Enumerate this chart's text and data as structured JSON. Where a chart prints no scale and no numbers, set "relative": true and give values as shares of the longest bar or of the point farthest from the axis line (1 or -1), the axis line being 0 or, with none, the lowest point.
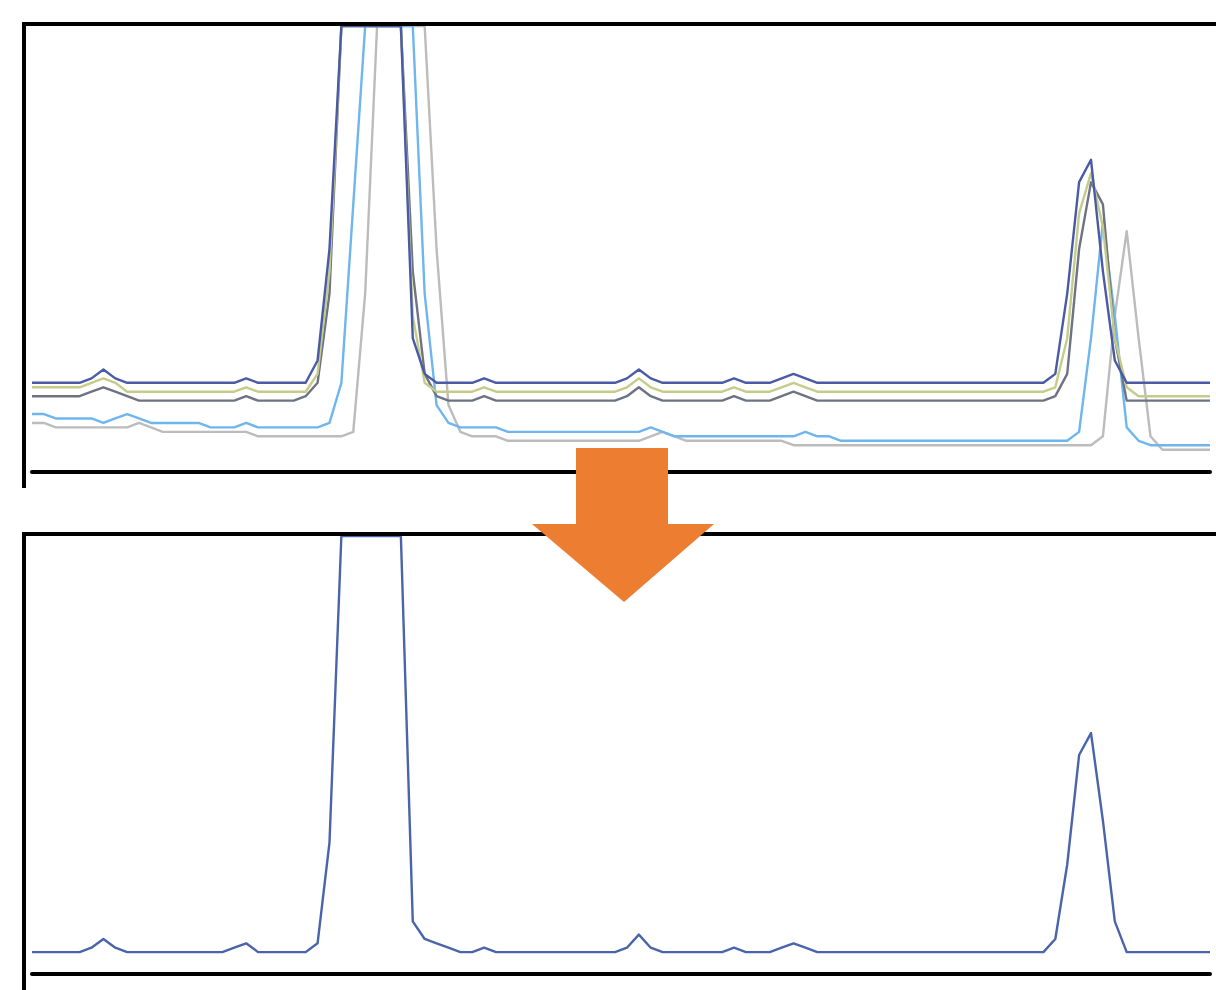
{
  "chart_data": [
    {
      "type": "line",
      "relative": true,
      "marker": "none",
      "categories": [
        null,
        null,
        null,
        null,
        null,
        null,
        null,
        null,
        null,
        null,
        null,
        null,
        null,
        null,
        null,
        null,
        null,
        null,
        null,
        null,
        null,
        null,
        null,
        null,
        null,
        null,
        null,
        null,
        null,
        null,
        null,
        null,
        null,
        null,
        null,
        null,
        null,
        null,
        null,
        null,
        null,
        null,
        null,
        null,
        null,
        null,
        null,
        null,
        null,
        null,
        null,
        null,
        null,
        null,
        null,
        null,
        null,
        null,
        null,
        null,
        null,
        null,
        null,
        null,
        null,
        null,
        null,
        null,
        null,
        null,
        null,
        null,
        null,
        null,
        null,
        null,
        null,
        null,
        null,
        null,
        null,
        null,
        null,
        null,
        null,
        null,
        null,
        null,
        null,
        null,
        null,
        null,
        null,
        null,
        null,
        null,
        null,
        null,
        null,
        null
      ],
      "series": [
        {
          "color": "#bcbcbc",
          "values": [
            0.11,
            0.11,
            0.1,
            0.1,
            0.1,
            0.1,
            0.1,
            0.1,
            0.1,
            0.11,
            0.1,
            0.09,
            0.09,
            0.09,
            0.09,
            0.09,
            0.09,
            0.09,
            0.09,
            0.08,
            0.08,
            0.08,
            0.08,
            0.08,
            0.08,
            0.08,
            0.08,
            0.09,
            0.4,
            1,
            1,
            1,
            1,
            1,
            0.5,
            0.15,
            0.09,
            0.08,
            0.08,
            0.08,
            0.07,
            0.07,
            0.07,
            0.07,
            0.07,
            0.07,
            0.07,
            0.07,
            0.07,
            0.07,
            0.07,
            0.07,
            0.08,
            0.09,
            0.08,
            0.07,
            0.07,
            0.07,
            0.07,
            0.07,
            0.07,
            0.07,
            0.07,
            0.07,
            0.06,
            0.06,
            0.06,
            0.06,
            0.06,
            0.06,
            0.06,
            0.06,
            0.06,
            0.06,
            0.06,
            0.06,
            0.06,
            0.06,
            0.06,
            0.06,
            0.06,
            0.06,
            0.06,
            0.06,
            0.06,
            0.06,
            0.06,
            0.06,
            0.06,
            0.06,
            0.08,
            0.35,
            0.54,
            0.3,
            0.08,
            0.05,
            0.05,
            0.05,
            0.05,
            0.05
          ]
        },
        {
          "color": "#6fb6ee",
          "values": [
            0.13,
            0.13,
            0.12,
            0.12,
            0.12,
            0.12,
            0.11,
            0.12,
            0.13,
            0.12,
            0.11,
            0.11,
            0.11,
            0.11,
            0.11,
            0.1,
            0.1,
            0.1,
            0.11,
            0.1,
            0.1,
            0.1,
            0.1,
            0.1,
            0.1,
            0.11,
            0.2,
            0.6,
            1,
            1,
            1,
            1,
            1,
            0.4,
            0.15,
            0.11,
            0.1,
            0.1,
            0.1,
            0.1,
            0.09,
            0.09,
            0.09,
            0.09,
            0.09,
            0.09,
            0.09,
            0.09,
            0.09,
            0.09,
            0.09,
            0.09,
            0.1,
            0.09,
            0.08,
            0.08,
            0.08,
            0.08,
            0.08,
            0.08,
            0.08,
            0.08,
            0.08,
            0.08,
            0.08,
            0.09,
            0.08,
            0.08,
            0.07,
            0.07,
            0.07,
            0.07,
            0.07,
            0.07,
            0.07,
            0.07,
            0.07,
            0.07,
            0.07,
            0.07,
            0.07,
            0.07,
            0.07,
            0.07,
            0.07,
            0.07,
            0.07,
            0.07,
            0.09,
            0.3,
            0.56,
            0.35,
            0.1,
            0.07,
            0.06,
            0.06,
            0.06,
            0.06,
            0.06,
            0.06
          ]
        },
        {
          "color": "#6e7384",
          "values": [
            0.17,
            0.17,
            0.17,
            0.17,
            0.17,
            0.18,
            0.19,
            0.18,
            0.17,
            0.16,
            0.16,
            0.16,
            0.16,
            0.16,
            0.16,
            0.16,
            0.16,
            0.16,
            0.17,
            0.16,
            0.16,
            0.16,
            0.16,
            0.17,
            0.2,
            0.4,
            1,
            1,
            1,
            1,
            1,
            1,
            0.45,
            0.22,
            0.17,
            0.16,
            0.16,
            0.16,
            0.17,
            0.16,
            0.16,
            0.16,
            0.16,
            0.16,
            0.16,
            0.16,
            0.16,
            0.16,
            0.16,
            0.16,
            0.17,
            0.19,
            0.17,
            0.16,
            0.16,
            0.16,
            0.16,
            0.16,
            0.16,
            0.17,
            0.16,
            0.16,
            0.16,
            0.17,
            0.18,
            0.17,
            0.16,
            0.16,
            0.16,
            0.16,
            0.16,
            0.16,
            0.16,
            0.16,
            0.16,
            0.16,
            0.16,
            0.16,
            0.16,
            0.16,
            0.16,
            0.16,
            0.16,
            0.16,
            0.16,
            0.16,
            0.17,
            0.22,
            0.5,
            0.65,
            0.6,
            0.3,
            0.16,
            0.16,
            0.16,
            0.16,
            0.16,
            0.16,
            0.16,
            0.16
          ]
        },
        {
          "color": "#c5cc8a",
          "values": [
            0.19,
            0.19,
            0.19,
            0.19,
            0.19,
            0.2,
            0.21,
            0.2,
            0.18,
            0.18,
            0.18,
            0.18,
            0.18,
            0.18,
            0.18,
            0.18,
            0.18,
            0.18,
            0.19,
            0.18,
            0.18,
            0.18,
            0.18,
            0.18,
            0.22,
            0.45,
            1,
            1,
            1,
            1,
            1,
            1,
            0.35,
            0.2,
            0.18,
            0.18,
            0.18,
            0.18,
            0.19,
            0.18,
            0.18,
            0.18,
            0.18,
            0.18,
            0.18,
            0.18,
            0.18,
            0.18,
            0.18,
            0.18,
            0.19,
            0.21,
            0.19,
            0.18,
            0.18,
            0.18,
            0.18,
            0.18,
            0.18,
            0.19,
            0.18,
            0.18,
            0.18,
            0.19,
            0.2,
            0.19,
            0.18,
            0.18,
            0.18,
            0.18,
            0.18,
            0.18,
            0.18,
            0.18,
            0.18,
            0.18,
            0.18,
            0.18,
            0.18,
            0.18,
            0.18,
            0.18,
            0.18,
            0.18,
            0.18,
            0.18,
            0.19,
            0.3,
            0.58,
            0.67,
            0.55,
            0.3,
            0.19,
            0.17,
            0.17,
            0.17,
            0.17,
            0.17,
            0.17,
            0.17
          ]
        },
        {
          "color": "#4a5ba6",
          "values": [
            0.2,
            0.2,
            0.2,
            0.2,
            0.2,
            0.21,
            0.23,
            0.21,
            0.2,
            0.2,
            0.2,
            0.2,
            0.2,
            0.2,
            0.2,
            0.2,
            0.2,
            0.2,
            0.21,
            0.2,
            0.2,
            0.2,
            0.2,
            0.2,
            0.25,
            0.5,
            1,
            1,
            1,
            1,
            1,
            1,
            0.3,
            0.22,
            0.2,
            0.2,
            0.2,
            0.2,
            0.21,
            0.2,
            0.2,
            0.2,
            0.2,
            0.2,
            0.2,
            0.2,
            0.2,
            0.2,
            0.2,
            0.2,
            0.21,
            0.23,
            0.21,
            0.2,
            0.2,
            0.2,
            0.2,
            0.2,
            0.2,
            0.21,
            0.2,
            0.2,
            0.2,
            0.21,
            0.22,
            0.21,
            0.2,
            0.2,
            0.2,
            0.2,
            0.2,
            0.2,
            0.2,
            0.2,
            0.2,
            0.2,
            0.2,
            0.2,
            0.2,
            0.2,
            0.2,
            0.2,
            0.2,
            0.2,
            0.2,
            0.2,
            0.22,
            0.4,
            0.65,
            0.7,
            0.45,
            0.25,
            0.2,
            0.2,
            0.2,
            0.2,
            0.2,
            0.2,
            0.2,
            0.2
          ]
        }
      ]
    },
    {
      "type": "line",
      "relative": true,
      "marker": "none",
      "categories": [
        null,
        null,
        null,
        null,
        null,
        null,
        null,
        null,
        null,
        null,
        null,
        null,
        null,
        null,
        null,
        null,
        null,
        null,
        null,
        null,
        null,
        null,
        null,
        null,
        null,
        null,
        null,
        null,
        null,
        null,
        null,
        null,
        null,
        null,
        null,
        null,
        null,
        null,
        null,
        null,
        null,
        null,
        null,
        null,
        null,
        null,
        null,
        null,
        null,
        null,
        null,
        null,
        null,
        null,
        null,
        null,
        null,
        null,
        null,
        null,
        null,
        null,
        null,
        null,
        null,
        null,
        null,
        null,
        null,
        null,
        null,
        null,
        null,
        null,
        null,
        null,
        null,
        null,
        null,
        null,
        null,
        null,
        null,
        null,
        null,
        null,
        null,
        null,
        null,
        null,
        null,
        null,
        null,
        null,
        null,
        null,
        null,
        null,
        null,
        null
      ],
      "series": [
        {
          "color": "#4a64ac",
          "values": [
            0.05,
            0.05,
            0.05,
            0.05,
            0.05,
            0.06,
            0.08,
            0.06,
            0.05,
            0.05,
            0.05,
            0.05,
            0.05,
            0.05,
            0.05,
            0.05,
            0.05,
            0.06,
            0.07,
            0.05,
            0.05,
            0.05,
            0.05,
            0.05,
            0.07,
            0.3,
            1,
            1,
            1,
            1,
            1,
            1,
            0.12,
            0.08,
            0.07,
            0.06,
            0.05,
            0.05,
            0.06,
            0.05,
            0.05,
            0.05,
            0.05,
            0.05,
            0.05,
            0.05,
            0.05,
            0.05,
            0.05,
            0.05,
            0.06,
            0.09,
            0.06,
            0.05,
            0.05,
            0.05,
            0.05,
            0.05,
            0.05,
            0.06,
            0.05,
            0.05,
            0.05,
            0.06,
            0.07,
            0.06,
            0.05,
            0.05,
            0.05,
            0.05,
            0.05,
            0.05,
            0.05,
            0.05,
            0.05,
            0.05,
            0.05,
            0.05,
            0.05,
            0.05,
            0.05,
            0.05,
            0.05,
            0.05,
            0.05,
            0.05,
            0.08,
            0.25,
            0.5,
            0.55,
            0.35,
            0.12,
            0.05,
            0.05,
            0.05,
            0.05,
            0.05,
            0.05,
            0.05,
            0.05
          ]
        }
      ]
    }
  ]
}
